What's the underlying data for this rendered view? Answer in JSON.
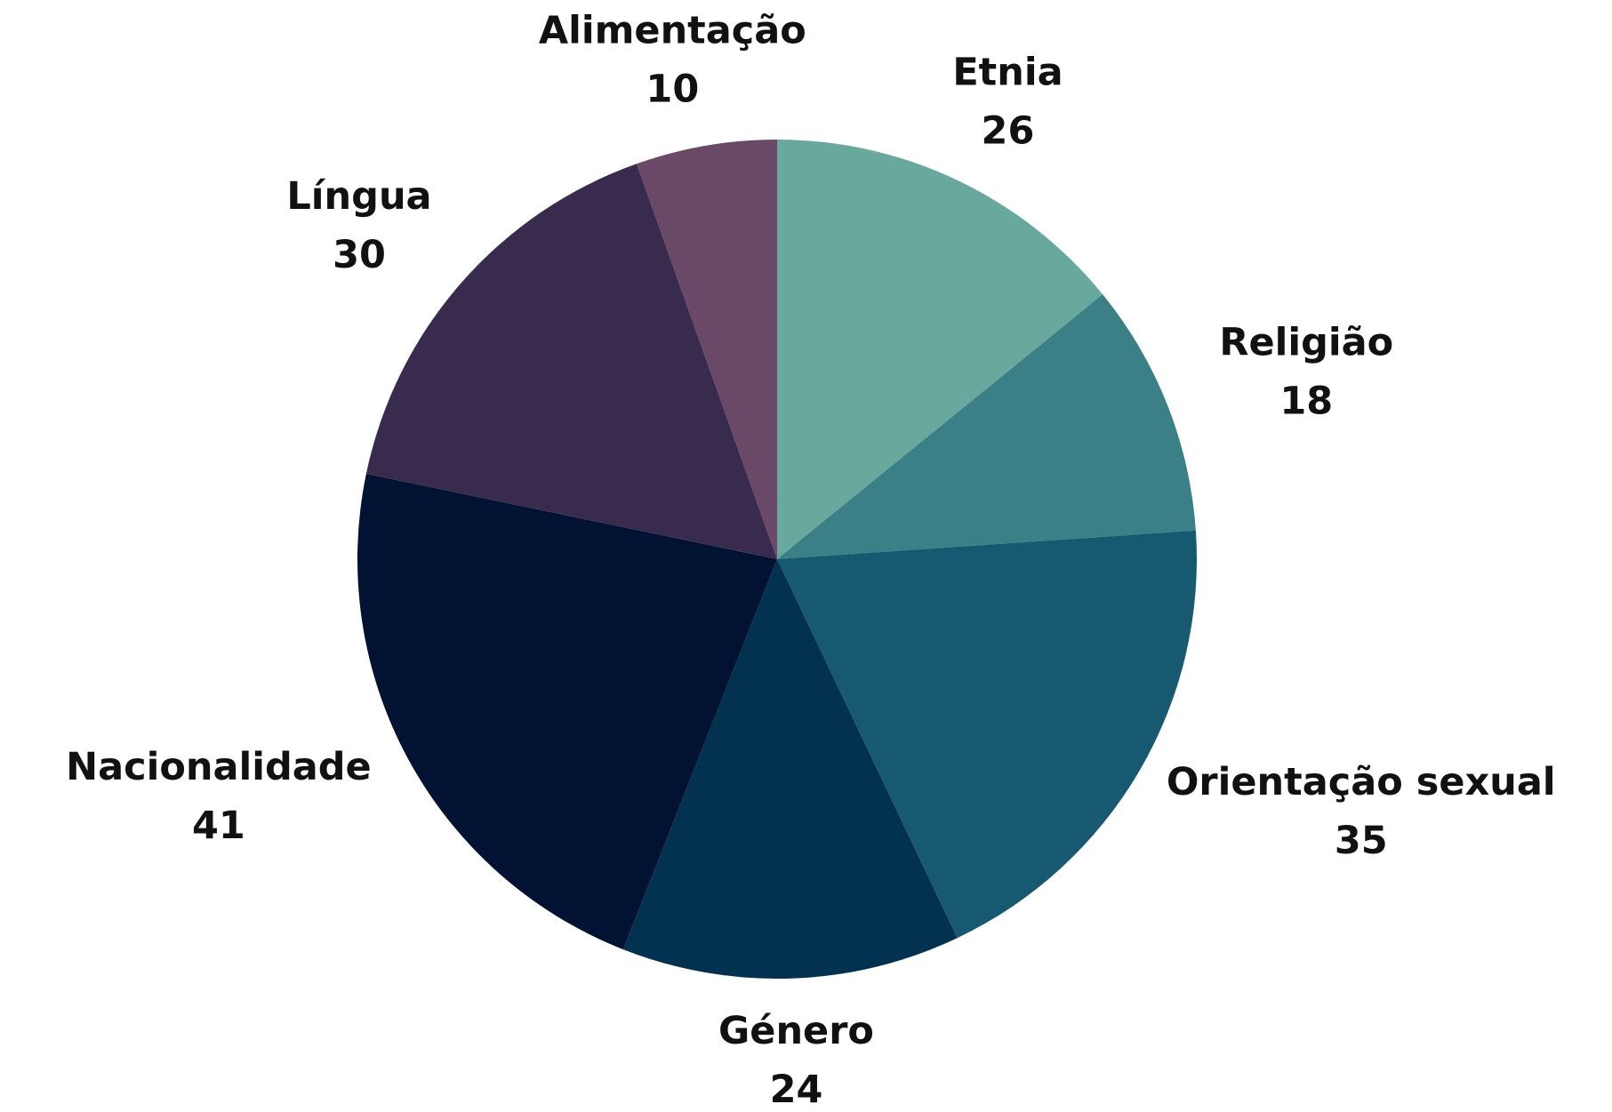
{
  "chart_data": {
    "type": "pie",
    "categories": [
      "Etnia",
      "Religião",
      "Orientação sexual",
      "Género",
      "Nacionalidade",
      "Língua",
      "Alimentação"
    ],
    "values": [
      26,
      18,
      35,
      24,
      41,
      30,
      10
    ],
    "colors": [
      "#69a89c",
      "#3b8086",
      "#175970",
      "#033250",
      "#011233",
      "#392b4d",
      "#6a4868"
    ]
  }
}
